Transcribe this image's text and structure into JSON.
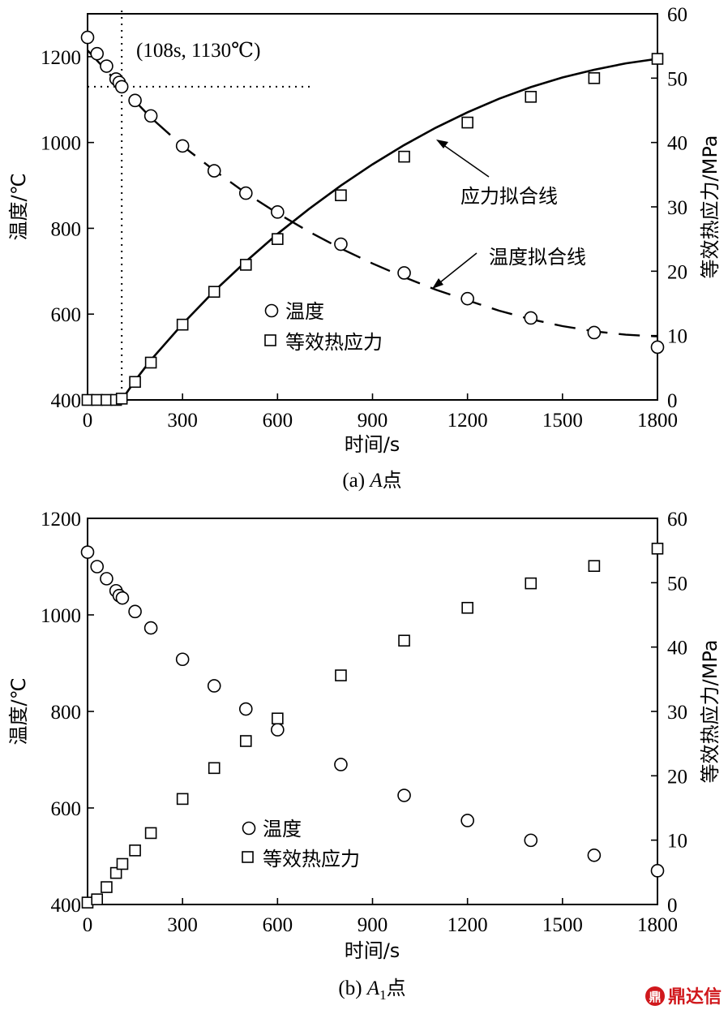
{
  "chart_data": [
    {
      "type": "scatter",
      "panel_caption_prefix": "(a) ",
      "panel_caption_italic": "A",
      "panel_caption_sub": "",
      "panel_caption_suffix": "点",
      "xlabel": "时间/s",
      "ylabel_left": "温度/℃",
      "ylabel_right": "等效热应力/MPa",
      "xlim": [
        0,
        1800
      ],
      "ylim_left": [
        400,
        1300
      ],
      "ylim_right": [
        0,
        60
      ],
      "xticks": [
        0,
        300,
        600,
        900,
        1200,
        1500,
        1800
      ],
      "yticks_left": [
        400,
        600,
        800,
        1000,
        1200
      ],
      "yticks_right": [
        0,
        10,
        20,
        30,
        40,
        50,
        60
      ],
      "series": [
        {
          "name": "温度",
          "marker": "circle",
          "axis": "left",
          "x": [
            0,
            30,
            60,
            90,
            100,
            108,
            150,
            200,
            300,
            400,
            500,
            600,
            800,
            1000,
            1200,
            1400,
            1600,
            1800
          ],
          "values": [
            1245,
            1207,
            1178,
            1148,
            1140,
            1130,
            1098,
            1062,
            992,
            934,
            882,
            838,
            763,
            696,
            636,
            591,
            557,
            523
          ]
        },
        {
          "name": "等效热应力",
          "marker": "square",
          "axis": "right",
          "x": [
            0,
            30,
            60,
            90,
            108,
            150,
            200,
            300,
            400,
            500,
            600,
            800,
            1000,
            1200,
            1400,
            1600,
            1800
          ],
          "values": [
            0,
            0,
            0,
            0,
            0.2,
            2.8,
            5.8,
            11.7,
            16.8,
            21,
            25,
            31.8,
            37.8,
            43.1,
            47.1,
            50,
            53
          ]
        },
        {
          "name": "温度拟合线",
          "style": "dashed",
          "axis": "left",
          "x": [
            0,
            100,
            200,
            300,
            400,
            500,
            600,
            700,
            800,
            900,
            1000,
            1100,
            1200,
            1300,
            1400,
            1500,
            1600,
            1700,
            1800
          ],
          "values": [
            1215,
            1135,
            1058,
            992,
            935,
            882,
            835,
            792,
            753,
            718,
            686,
            657,
            632,
            608,
            588,
            572,
            560,
            552,
            548
          ]
        },
        {
          "name": "应力拟合线",
          "style": "solid",
          "axis": "right",
          "x": [
            108,
            150,
            200,
            300,
            400,
            500,
            600,
            700,
            800,
            900,
            1000,
            1100,
            1200,
            1300,
            1400,
            1500,
            1600,
            1700,
            1800
          ],
          "values": [
            0,
            3,
            6.2,
            11.8,
            16.9,
            21.5,
            25.8,
            29.7,
            33.3,
            36.6,
            39.6,
            42.3,
            44.7,
            46.8,
            48.6,
            50.1,
            51.3,
            52.3,
            53
          ]
        }
      ],
      "legend": [
        {
          "marker": "circle",
          "label": "温度"
        },
        {
          "marker": "square",
          "label": "等效热应力"
        }
      ],
      "annotations": [
        {
          "text": "(108s, 1130℃)",
          "x": 108,
          "y": 1130,
          "type": "crosshair"
        },
        {
          "text": "应力拟合线",
          "arrow_to": {
            "x": 1000,
            "y_right": 40
          }
        },
        {
          "text": "温度拟合线",
          "arrow_to": {
            "x": 1090,
            "y": 675
          }
        }
      ]
    },
    {
      "type": "scatter",
      "panel_caption_prefix": "(b) ",
      "panel_caption_italic": "A",
      "panel_caption_sub": "1",
      "panel_caption_suffix": "点",
      "xlabel": "时间/s",
      "ylabel_left": "温度/℃",
      "ylabel_right": "等效热应力/MPa",
      "xlim": [
        0,
        1800
      ],
      "ylim_left": [
        400,
        1200
      ],
      "ylim_right": [
        0,
        60
      ],
      "xticks": [
        0,
        300,
        600,
        900,
        1200,
        1500,
        1800
      ],
      "yticks_left": [
        400,
        600,
        800,
        1000,
        1200
      ],
      "yticks_right": [
        0,
        10,
        20,
        30,
        40,
        50,
        60
      ],
      "series": [
        {
          "name": "温度",
          "marker": "circle",
          "axis": "left",
          "x": [
            0,
            30,
            60,
            90,
            100,
            110,
            150,
            200,
            300,
            400,
            500,
            600,
            800,
            1000,
            1200,
            1400,
            1600,
            1800
          ],
          "values": [
            1130,
            1100,
            1075,
            1050,
            1040,
            1035,
            1007,
            973,
            908,
            853,
            805,
            762,
            690,
            626,
            574,
            533,
            502,
            470
          ]
        },
        {
          "name": "等效热应力",
          "marker": "square",
          "axis": "right",
          "x": [
            0,
            30,
            60,
            90,
            110,
            150,
            200,
            300,
            400,
            500,
            600,
            800,
            1000,
            1200,
            1400,
            1600,
            1800
          ],
          "values": [
            0.3,
            0.8,
            2.7,
            4.9,
            6.3,
            8.4,
            11.1,
            16.4,
            21.2,
            25.4,
            28.9,
            35.6,
            41,
            46.1,
            49.9,
            52.6,
            55.3
          ]
        }
      ],
      "legend": [
        {
          "marker": "circle",
          "label": "温度"
        },
        {
          "marker": "square",
          "label": "等效热应力"
        }
      ]
    }
  ],
  "watermark_text": "鼎达信"
}
